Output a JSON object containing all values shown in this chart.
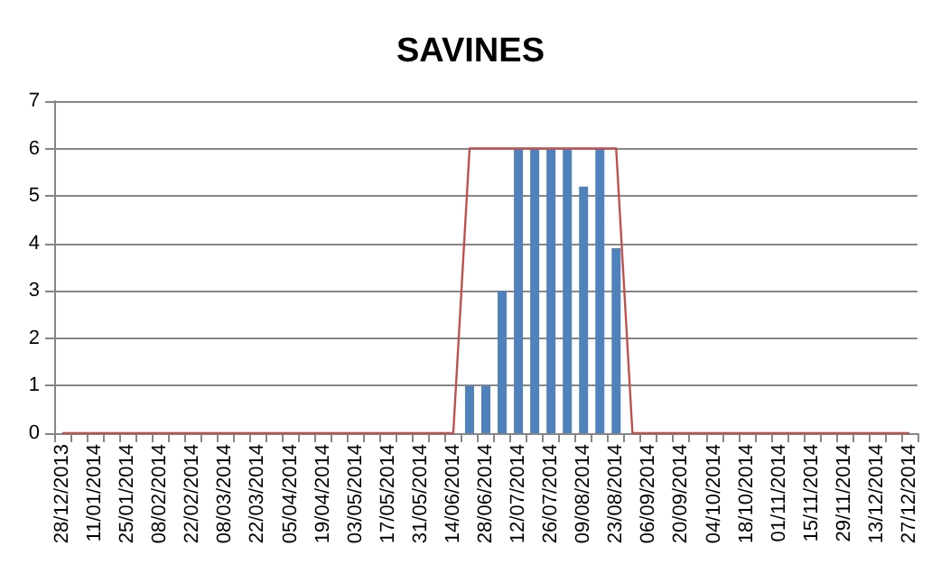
{
  "chart_data": {
    "type": "bar",
    "title": "SAVINES",
    "categories": [
      "28/12/2013",
      null,
      "11/01/2014",
      null,
      "25/01/2014",
      null,
      "08/02/2014",
      null,
      "22/02/2014",
      null,
      "08/03/2014",
      null,
      "22/03/2014",
      null,
      "05/04/2014",
      null,
      "19/04/2014",
      null,
      "03/05/2014",
      null,
      "17/05/2014",
      null,
      "31/05/2014",
      null,
      "14/06/2014",
      null,
      "28/06/2014",
      null,
      "12/07/2014",
      null,
      "26/07/2014",
      null,
      "09/08/2014",
      null,
      "23/08/2014",
      null,
      "06/09/2014",
      null,
      "20/09/2014",
      null,
      "04/10/2014",
      null,
      "18/10/2014",
      null,
      "01/11/2014",
      null,
      "15/11/2014",
      null,
      "29/11/2014",
      null,
      "13/12/2014",
      null,
      "27/12/2014"
    ],
    "series": [
      {
        "color": "#4f81bd",
        "values": [
          null,
          null,
          null,
          null,
          null,
          null,
          null,
          null,
          null,
          null,
          null,
          null,
          null,
          null,
          null,
          null,
          null,
          null,
          null,
          null,
          null,
          null,
          null,
          null,
          null,
          1,
          1,
          3,
          6,
          6,
          6,
          6,
          5.2,
          6,
          3.9,
          null,
          null,
          null,
          null,
          null,
          null,
          null,
          null,
          null,
          null,
          null,
          null,
          null,
          null,
          null,
          null,
          null,
          null
        ]
      },
      {
        "type": "line",
        "color": "#c0504d",
        "values": [
          0,
          0,
          0,
          0,
          0,
          0,
          0,
          0,
          0,
          0,
          0,
          0,
          0,
          0,
          0,
          0,
          0,
          0,
          0,
          0,
          0,
          0,
          0,
          0,
          0,
          6,
          6,
          6,
          6,
          6,
          6,
          6,
          6,
          6,
          6,
          0,
          0,
          0,
          0,
          0,
          0,
          0,
          0,
          0,
          0,
          0,
          0,
          0,
          0,
          0,
          0,
          0,
          0
        ]
      }
    ],
    "ylim": [
      0,
      7
    ],
    "yticks": [
      0,
      1,
      2,
      3,
      4,
      5,
      6,
      7
    ],
    "grid": "y",
    "marker": "none",
    "line_style": "solid"
  }
}
